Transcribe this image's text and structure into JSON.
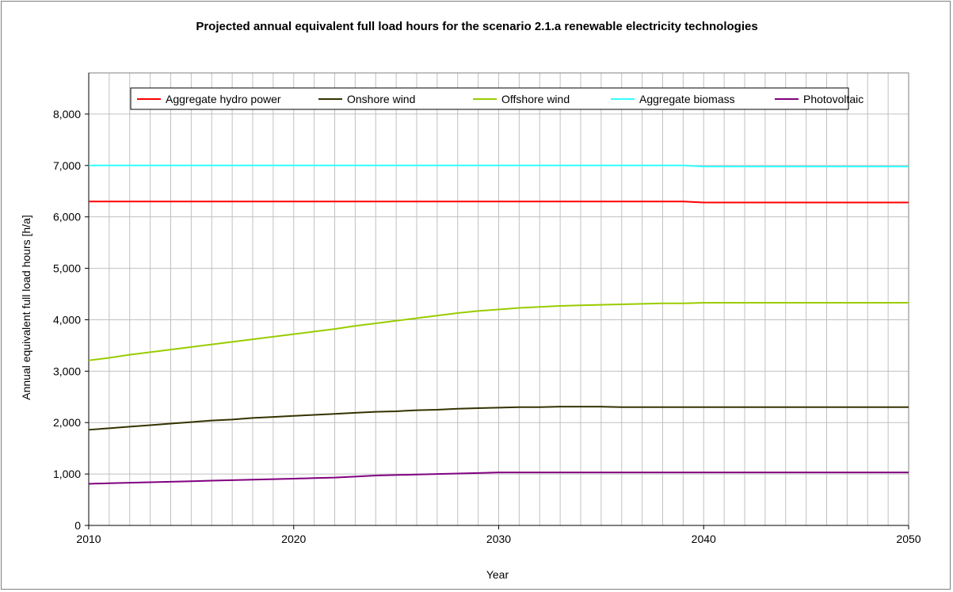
{
  "chart_data": {
    "type": "line",
    "title": "Projected annual equivalent full load hours for the scenario 2.1.a renewable electricity technologies",
    "xlabel": "Year",
    "ylabel": "Annual equivalent full load hours [h/a]",
    "xlim": [
      2010,
      2050
    ],
    "ylim": [
      0,
      8800
    ],
    "x_ticks": [
      2010,
      2020,
      2030,
      2040,
      2050
    ],
    "x_tick_labels": [
      "2010",
      "2020",
      "2030",
      "2040",
      "2050"
    ],
    "y_ticks": [
      0,
      1000,
      2000,
      3000,
      4000,
      5000,
      6000,
      7000,
      8000
    ],
    "y_tick_labels": [
      "0",
      "1,000",
      "2,000",
      "3,000",
      "4,000",
      "5,000",
      "6,000",
      "7,000",
      "8,000"
    ],
    "grid": true,
    "legend_position": "top",
    "x": [
      2010,
      2011,
      2012,
      2013,
      2014,
      2015,
      2016,
      2017,
      2018,
      2019,
      2020,
      2021,
      2022,
      2023,
      2024,
      2025,
      2026,
      2027,
      2028,
      2029,
      2030,
      2031,
      2032,
      2033,
      2034,
      2035,
      2036,
      2037,
      2038,
      2039,
      2040,
      2041,
      2042,
      2043,
      2044,
      2045,
      2046,
      2047,
      2048,
      2049,
      2050
    ],
    "series": [
      {
        "name": "Aggregate hydro power",
        "color": "#ff0000",
        "values": [
          6300,
          6300,
          6300,
          6300,
          6300,
          6300,
          6300,
          6300,
          6300,
          6300,
          6300,
          6300,
          6300,
          6300,
          6300,
          6300,
          6300,
          6300,
          6300,
          6300,
          6300,
          6300,
          6300,
          6300,
          6300,
          6300,
          6300,
          6300,
          6300,
          6300,
          6280,
          6280,
          6280,
          6280,
          6280,
          6280,
          6280,
          6280,
          6280,
          6280,
          6280
        ]
      },
      {
        "name": "Onshore wind",
        "color": "#333300",
        "values": [
          1860,
          1890,
          1920,
          1950,
          1980,
          2010,
          2040,
          2060,
          2090,
          2110,
          2130,
          2150,
          2170,
          2190,
          2210,
          2220,
          2240,
          2250,
          2270,
          2280,
          2290,
          2300,
          2300,
          2310,
          2310,
          2310,
          2300,
          2300,
          2300,
          2300,
          2300,
          2300,
          2300,
          2300,
          2300,
          2300,
          2300,
          2300,
          2300,
          2300,
          2300
        ]
      },
      {
        "name": "Offshore wind",
        "color": "#99cc00",
        "values": [
          3210,
          3260,
          3320,
          3370,
          3420,
          3470,
          3520,
          3570,
          3620,
          3670,
          3720,
          3770,
          3820,
          3880,
          3930,
          3980,
          4030,
          4080,
          4130,
          4170,
          4200,
          4230,
          4250,
          4270,
          4280,
          4290,
          4300,
          4310,
          4320,
          4320,
          4330,
          4330,
          4330,
          4330,
          4330,
          4330,
          4330,
          4330,
          4330,
          4330,
          4330
        ]
      },
      {
        "name": "Aggregate biomass",
        "color": "#33ffff",
        "values": [
          7000,
          7000,
          7000,
          7000,
          7000,
          7000,
          7000,
          7000,
          7000,
          7000,
          7000,
          7000,
          7000,
          7000,
          7000,
          7000,
          7000,
          7000,
          7000,
          7000,
          7000,
          7000,
          7000,
          7000,
          7000,
          7000,
          7000,
          7000,
          7000,
          7000,
          6980,
          6980,
          6980,
          6980,
          6980,
          6980,
          6980,
          6980,
          6980,
          6980,
          6980
        ]
      },
      {
        "name": "Photovoltaic",
        "color": "#800080",
        "values": [
          810,
          820,
          830,
          840,
          850,
          860,
          870,
          880,
          890,
          900,
          910,
          920,
          930,
          950,
          970,
          980,
          990,
          1000,
          1010,
          1020,
          1030,
          1030,
          1030,
          1030,
          1030,
          1030,
          1030,
          1030,
          1030,
          1030,
          1030,
          1030,
          1030,
          1030,
          1030,
          1030,
          1030,
          1030,
          1030,
          1030,
          1030
        ]
      }
    ]
  }
}
